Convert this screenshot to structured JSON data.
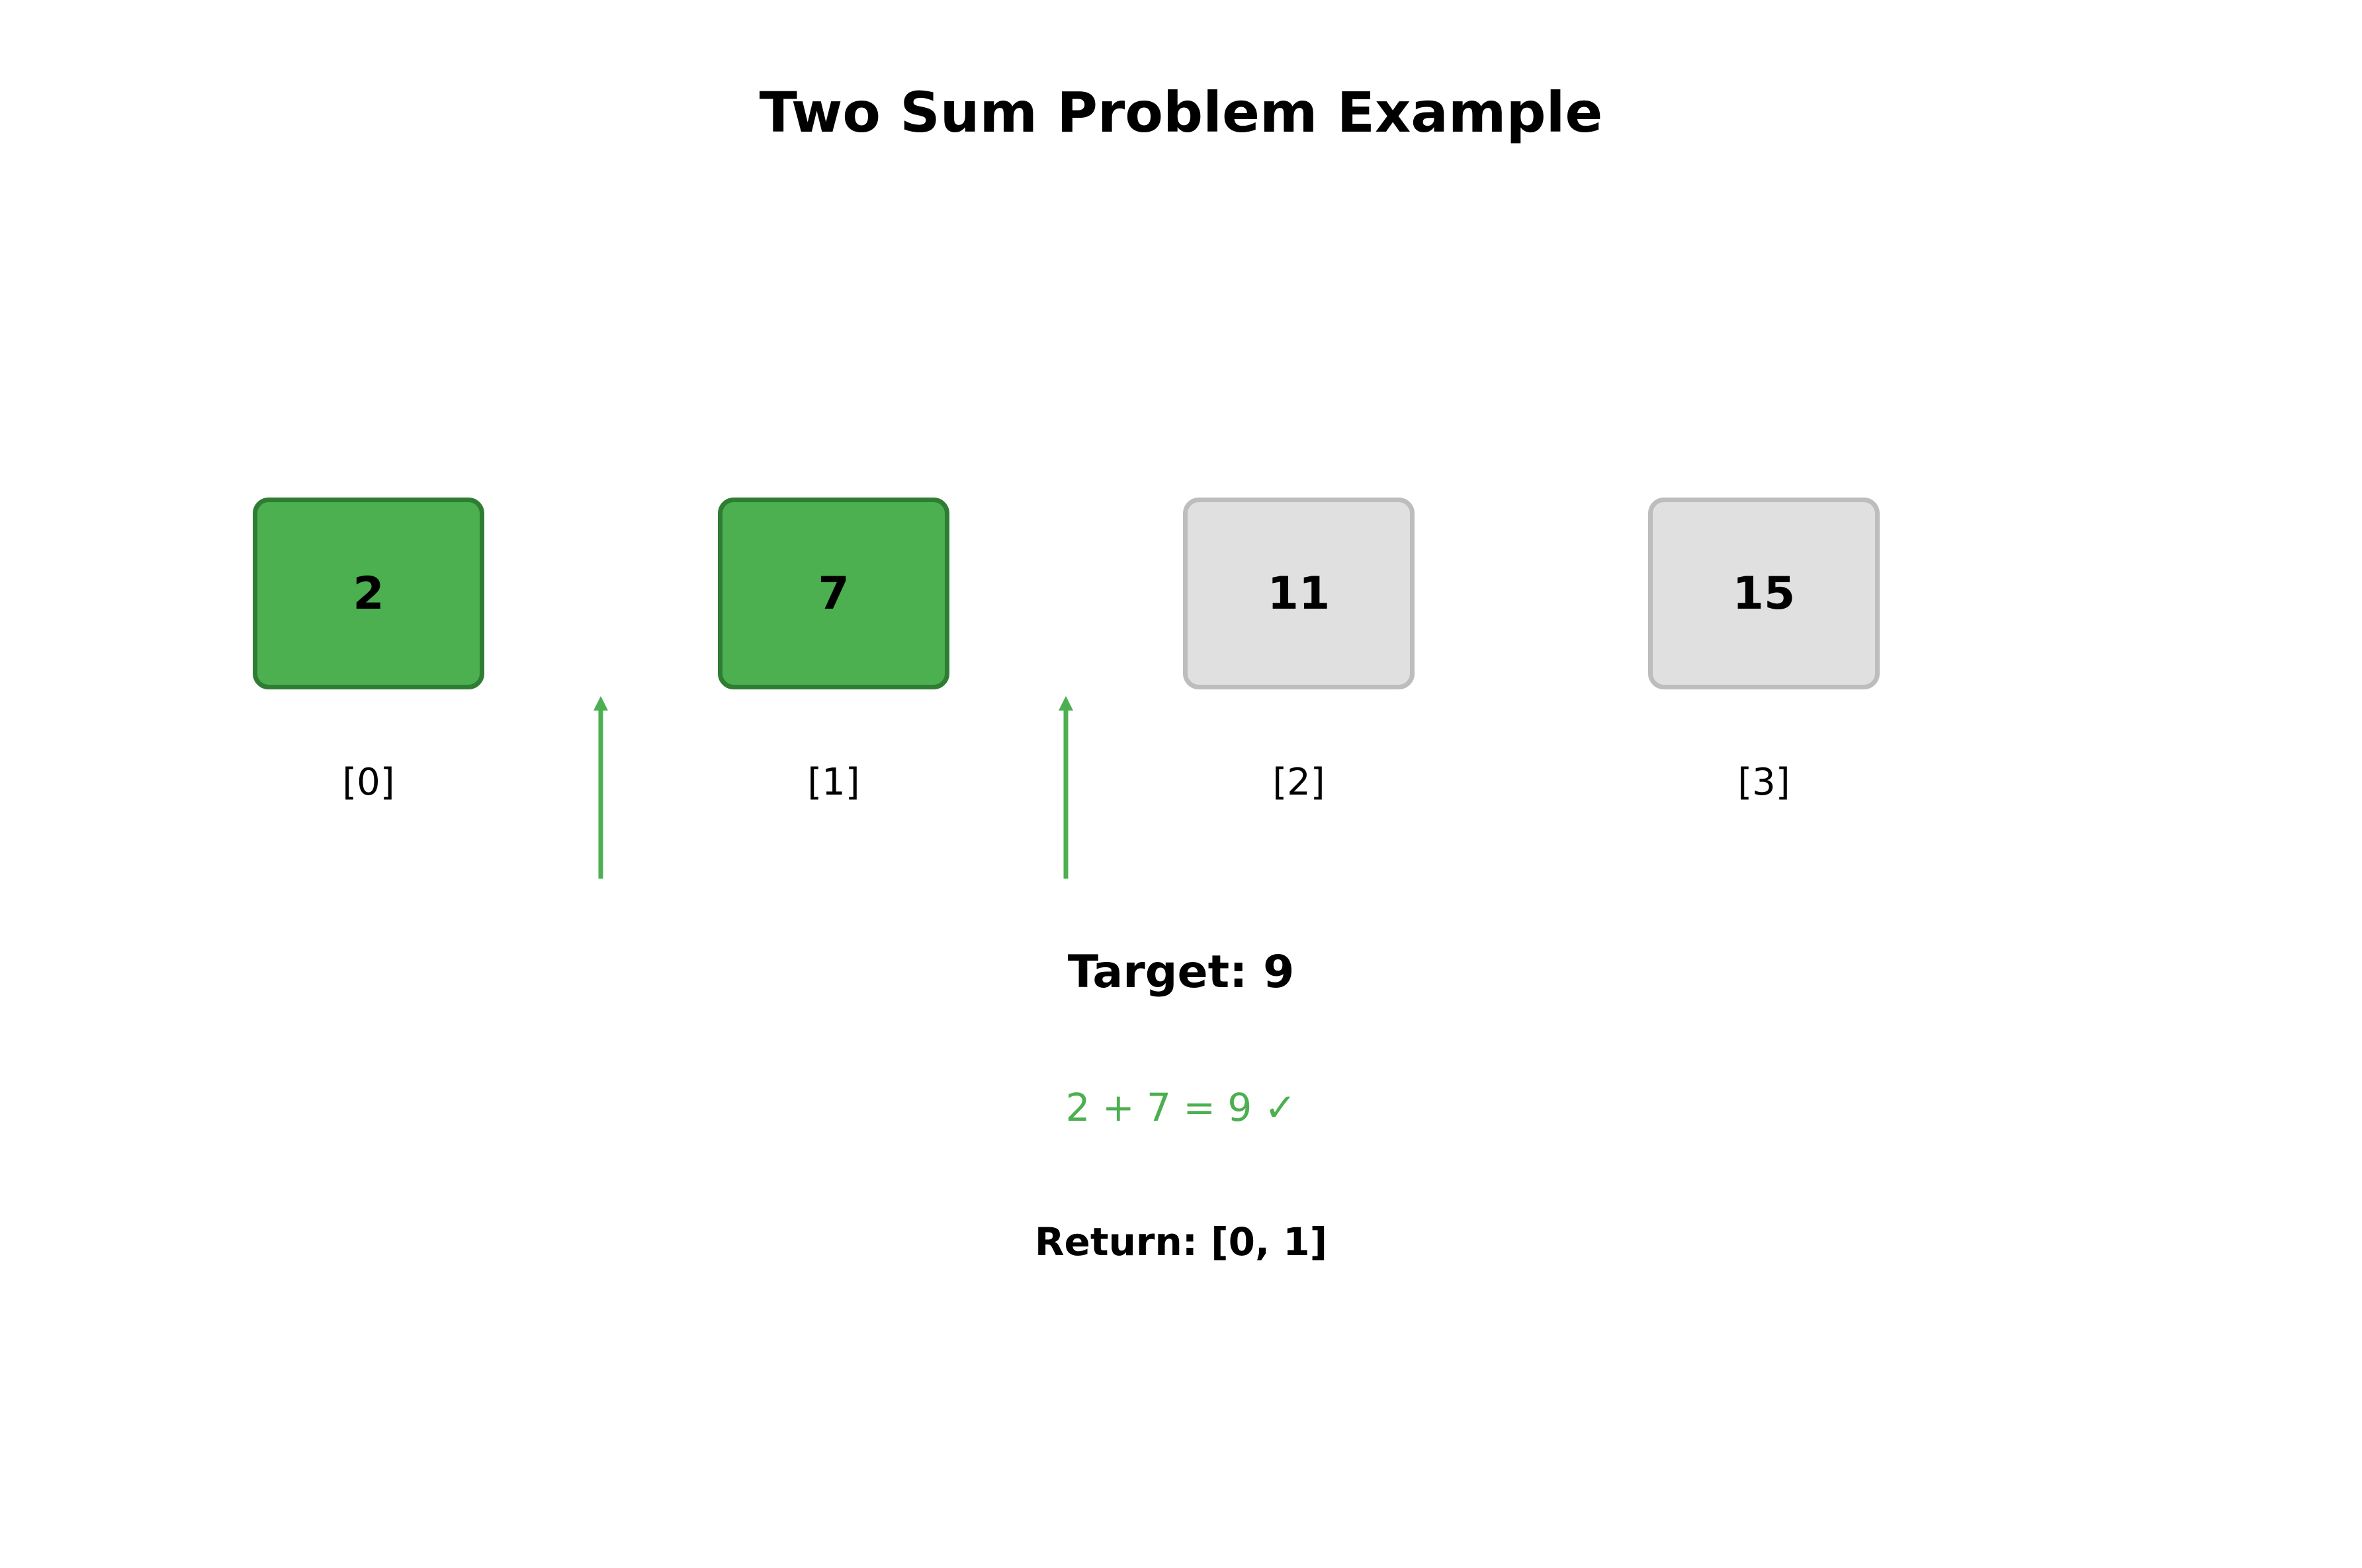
{
  "title": "Two Sum Problem Example",
  "array": [
    {
      "value": "2",
      "index": "[0]",
      "highlighted": true
    },
    {
      "value": "7",
      "index": "[1]",
      "highlighted": true
    },
    {
      "value": "11",
      "index": "[2]",
      "highlighted": false
    },
    {
      "value": "15",
      "index": "[3]",
      "highlighted": false
    }
  ],
  "target_text": "Target: 9",
  "equation_text": "2 + 7 = 9 ✓",
  "result_text": "Return: [0, 1]",
  "colors": {
    "highlight_fill": "#4CAF50",
    "highlight_border": "#2E7D32",
    "normal_fill": "#E0E0E0",
    "normal_border": "#BDBDBD",
    "arrow": "#4CAF50",
    "equation": "#4CAF50"
  }
}
